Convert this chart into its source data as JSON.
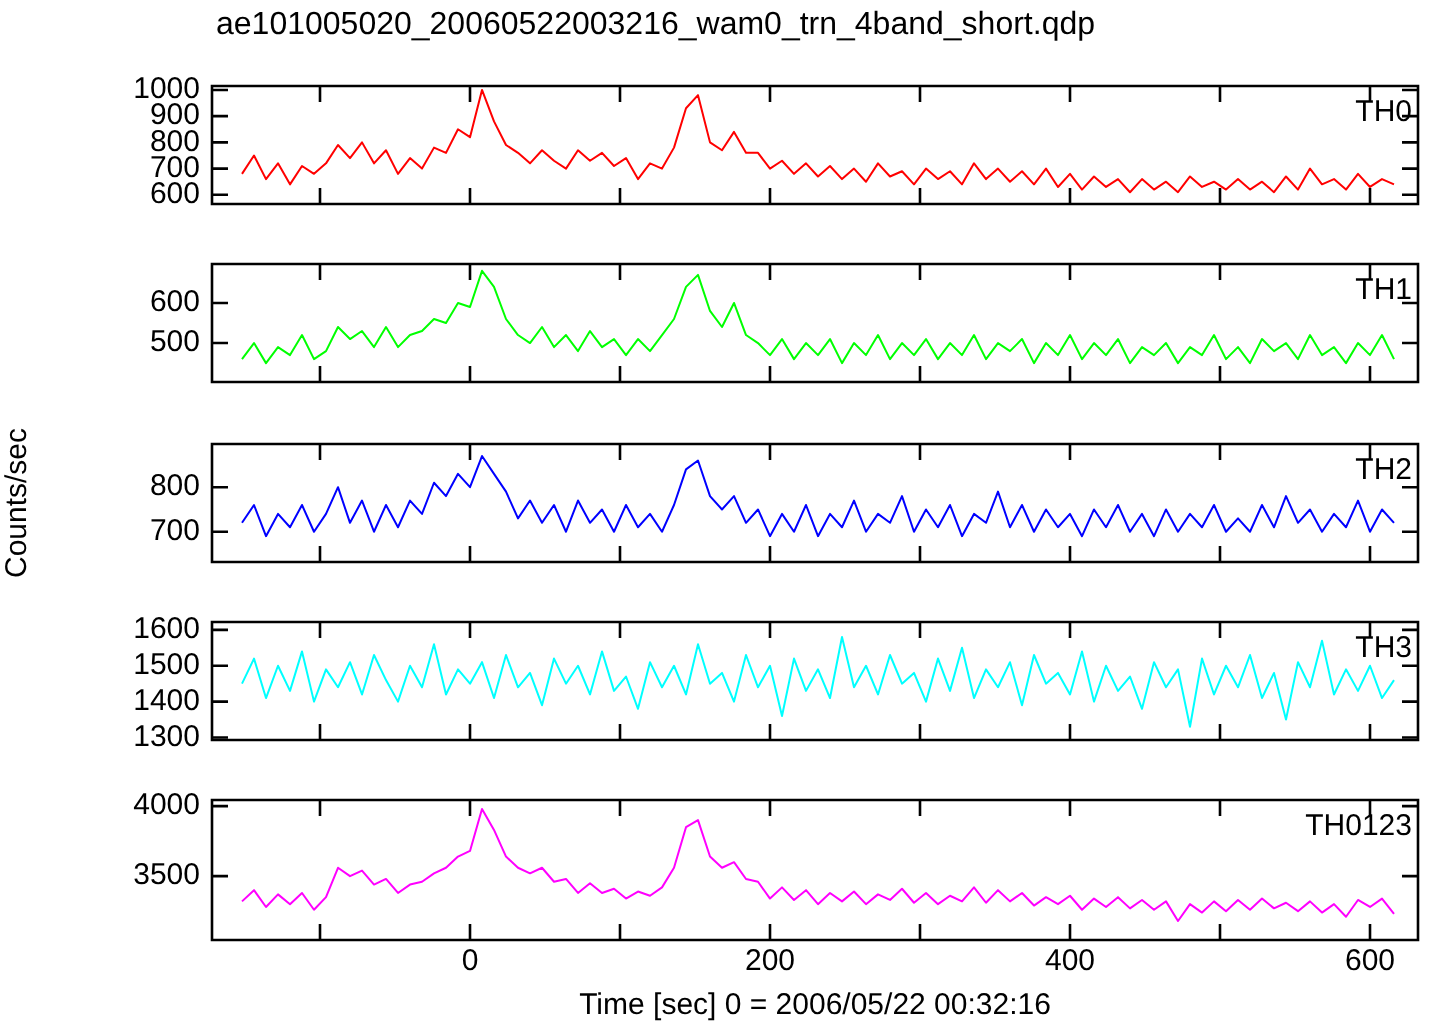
{
  "chart_data": [
    {
      "type": "line",
      "title": "ae101005020_20060522003216_wam0_trn_4band_short.qdp",
      "tick_labels": "y",
      "marker": "none",
      "x": [
        -152,
        -144,
        -136,
        -128,
        -120,
        -112,
        -104,
        -96,
        -88,
        -80,
        -72,
        -64,
        -56,
        -48,
        -40,
        -32,
        -24,
        -16,
        -8,
        0,
        8,
        16,
        24,
        32,
        40,
        48,
        56,
        64,
        72,
        80,
        88,
        96,
        104,
        112,
        120,
        128,
        136,
        144,
        152,
        160,
        168,
        176,
        184,
        192,
        200,
        208,
        216,
        224,
        232,
        240,
        248,
        256,
        264,
        272,
        280,
        288,
        296,
        304,
        312,
        320,
        328,
        336,
        344,
        352,
        360,
        368,
        376,
        384,
        392,
        400,
        408,
        416,
        424,
        432,
        440,
        448,
        456,
        464,
        472,
        480,
        488,
        496,
        504,
        512,
        520,
        528,
        536,
        544,
        552,
        560,
        568,
        576,
        584,
        592,
        600,
        608,
        616
      ],
      "xlim": [
        -172,
        632
      ],
      "xticks": [
        {
          "value": -100,
          "label": null
        },
        {
          "value": 0,
          "label": null
        },
        {
          "value": 100,
          "label": null
        },
        {
          "value": 200,
          "label": null
        },
        {
          "value": 300,
          "label": null
        },
        {
          "value": 400,
          "label": null
        },
        {
          "value": 500,
          "label": null
        },
        {
          "value": 600,
          "label": null
        }
      ],
      "ylim": [
        565,
        1015
      ],
      "yticks": [
        600,
        700,
        800,
        900,
        1000
      ],
      "series": [
        {
          "name": "TH0",
          "color": "#ff0000",
          "values": [
            680,
            750,
            660,
            720,
            640,
            710,
            680,
            720,
            790,
            740,
            800,
            720,
            770,
            680,
            740,
            700,
            780,
            760,
            850,
            820,
            1000,
            880,
            790,
            760,
            720,
            770,
            730,
            700,
            770,
            730,
            760,
            710,
            740,
            660,
            720,
            700,
            780,
            930,
            980,
            800,
            770,
            840,
            760,
            760,
            700,
            730,
            680,
            720,
            670,
            710,
            660,
            700,
            650,
            720,
            670,
            690,
            640,
            700,
            660,
            690,
            640,
            720,
            660,
            700,
            650,
            690,
            640,
            700,
            630,
            680,
            620,
            670,
            630,
            660,
            610,
            660,
            620,
            650,
            610,
            670,
            630,
            650,
            620,
            660,
            620,
            650,
            610,
            670,
            620,
            700,
            640,
            660,
            620,
            680,
            630,
            660,
            640
          ]
        }
      ]
    },
    {
      "type": "line",
      "tick_labels": "y",
      "marker": "none",
      "x": [
        -152,
        -144,
        -136,
        -128,
        -120,
        -112,
        -104,
        -96,
        -88,
        -80,
        -72,
        -64,
        -56,
        -48,
        -40,
        -32,
        -24,
        -16,
        -8,
        0,
        8,
        16,
        24,
        32,
        40,
        48,
        56,
        64,
        72,
        80,
        88,
        96,
        104,
        112,
        120,
        128,
        136,
        144,
        152,
        160,
        168,
        176,
        184,
        192,
        200,
        208,
        216,
        224,
        232,
        240,
        248,
        256,
        264,
        272,
        280,
        288,
        296,
        304,
        312,
        320,
        328,
        336,
        344,
        352,
        360,
        368,
        376,
        384,
        392,
        400,
        408,
        416,
        424,
        432,
        440,
        448,
        456,
        464,
        472,
        480,
        488,
        496,
        504,
        512,
        520,
        528,
        536,
        544,
        552,
        560,
        568,
        576,
        584,
        592,
        600,
        608,
        616
      ],
      "xlim": [
        -172,
        632
      ],
      "xticks": [
        {
          "value": -100,
          "label": null
        },
        {
          "value": 0,
          "label": null
        },
        {
          "value": 100,
          "label": null
        },
        {
          "value": 200,
          "label": null
        },
        {
          "value": 300,
          "label": null
        },
        {
          "value": 400,
          "label": null
        },
        {
          "value": 500,
          "label": null
        },
        {
          "value": 600,
          "label": null
        }
      ],
      "ylim": [
        403,
        697
      ],
      "yticks": [
        500,
        600
      ],
      "series": [
        {
          "name": "TH1",
          "color": "#00ff00",
          "values": [
            460,
            500,
            450,
            490,
            470,
            520,
            460,
            480,
            540,
            510,
            530,
            490,
            540,
            490,
            520,
            530,
            560,
            550,
            600,
            590,
            680,
            640,
            560,
            520,
            500,
            540,
            490,
            520,
            480,
            530,
            490,
            510,
            470,
            510,
            480,
            520,
            560,
            640,
            670,
            580,
            540,
            600,
            520,
            500,
            470,
            510,
            460,
            500,
            470,
            510,
            450,
            500,
            470,
            520,
            460,
            500,
            470,
            510,
            460,
            500,
            470,
            520,
            460,
            500,
            480,
            510,
            450,
            500,
            470,
            520,
            460,
            500,
            470,
            510,
            450,
            490,
            470,
            500,
            450,
            490,
            470,
            520,
            460,
            490,
            450,
            510,
            480,
            500,
            460,
            520,
            470,
            490,
            450,
            500,
            470,
            520,
            460
          ]
        }
      ]
    },
    {
      "type": "line",
      "tick_labels": "y",
      "marker": "none",
      "ylabel": "Counts/sec",
      "x": [
        -152,
        -144,
        -136,
        -128,
        -120,
        -112,
        -104,
        -96,
        -88,
        -80,
        -72,
        -64,
        -56,
        -48,
        -40,
        -32,
        -24,
        -16,
        -8,
        0,
        8,
        16,
        24,
        32,
        40,
        48,
        56,
        64,
        72,
        80,
        88,
        96,
        104,
        112,
        120,
        128,
        136,
        144,
        152,
        160,
        168,
        176,
        184,
        192,
        200,
        208,
        216,
        224,
        232,
        240,
        248,
        256,
        264,
        272,
        280,
        288,
        296,
        304,
        312,
        320,
        328,
        336,
        344,
        352,
        360,
        368,
        376,
        384,
        392,
        400,
        408,
        416,
        424,
        432,
        440,
        448,
        456,
        464,
        472,
        480,
        488,
        496,
        504,
        512,
        520,
        528,
        536,
        544,
        552,
        560,
        568,
        576,
        584,
        592,
        600,
        608,
        616
      ],
      "xlim": [
        -172,
        632
      ],
      "xticks": [
        {
          "value": -100,
          "label": null
        },
        {
          "value": 0,
          "label": null
        },
        {
          "value": 100,
          "label": null
        },
        {
          "value": 200,
          "label": null
        },
        {
          "value": 300,
          "label": null
        },
        {
          "value": 400,
          "label": null
        },
        {
          "value": 500,
          "label": null
        },
        {
          "value": 600,
          "label": null
        }
      ],
      "ylim": [
        632,
        897
      ],
      "yticks": [
        700,
        800
      ],
      "series": [
        {
          "name": "TH2",
          "color": "#0000ff",
          "values": [
            720,
            760,
            690,
            740,
            710,
            760,
            700,
            740,
            800,
            720,
            770,
            700,
            760,
            710,
            770,
            740,
            810,
            780,
            830,
            800,
            870,
            830,
            790,
            730,
            770,
            720,
            760,
            700,
            770,
            720,
            750,
            700,
            760,
            710,
            740,
            700,
            760,
            840,
            860,
            780,
            750,
            780,
            720,
            750,
            690,
            740,
            700,
            760,
            690,
            740,
            710,
            770,
            700,
            740,
            720,
            780,
            700,
            750,
            710,
            760,
            690,
            740,
            720,
            790,
            710,
            760,
            700,
            750,
            710,
            740,
            690,
            750,
            710,
            760,
            700,
            740,
            690,
            750,
            700,
            740,
            710,
            760,
            700,
            730,
            700,
            760,
            710,
            780,
            720,
            750,
            700,
            740,
            710,
            770,
            700,
            750,
            720
          ]
        }
      ]
    },
    {
      "type": "line",
      "tick_labels": "y",
      "marker": "none",
      "x": [
        -152,
        -144,
        -136,
        -128,
        -120,
        -112,
        -104,
        -96,
        -88,
        -80,
        -72,
        -64,
        -56,
        -48,
        -40,
        -32,
        -24,
        -16,
        -8,
        0,
        8,
        16,
        24,
        32,
        40,
        48,
        56,
        64,
        72,
        80,
        88,
        96,
        104,
        112,
        120,
        128,
        136,
        144,
        152,
        160,
        168,
        176,
        184,
        192,
        200,
        208,
        216,
        224,
        232,
        240,
        248,
        256,
        264,
        272,
        280,
        288,
        296,
        304,
        312,
        320,
        328,
        336,
        344,
        352,
        360,
        368,
        376,
        384,
        392,
        400,
        408,
        416,
        424,
        432,
        440,
        448,
        456,
        464,
        472,
        480,
        488,
        496,
        504,
        512,
        520,
        528,
        536,
        544,
        552,
        560,
        568,
        576,
        584,
        592,
        600,
        608,
        616
      ],
      "xlim": [
        -172,
        632
      ],
      "xticks": [
        {
          "value": -100,
          "label": null
        },
        {
          "value": 0,
          "label": null
        },
        {
          "value": 100,
          "label": null
        },
        {
          "value": 200,
          "label": null
        },
        {
          "value": 300,
          "label": null
        },
        {
          "value": 400,
          "label": null
        },
        {
          "value": 500,
          "label": null
        },
        {
          "value": 600,
          "label": null
        }
      ],
      "ylim": [
        1293,
        1622
      ],
      "yticks": [
        1300,
        1400,
        1500,
        1600
      ],
      "series": [
        {
          "name": "TH3",
          "color": "#00ffff",
          "values": [
            1450,
            1520,
            1410,
            1500,
            1430,
            1540,
            1400,
            1490,
            1440,
            1510,
            1420,
            1530,
            1460,
            1400,
            1500,
            1440,
            1560,
            1420,
            1490,
            1450,
            1510,
            1410,
            1530,
            1440,
            1480,
            1390,
            1520,
            1450,
            1500,
            1420,
            1540,
            1430,
            1470,
            1380,
            1510,
            1440,
            1500,
            1420,
            1560,
            1450,
            1480,
            1400,
            1530,
            1440,
            1500,
            1360,
            1520,
            1430,
            1490,
            1410,
            1580,
            1440,
            1500,
            1420,
            1530,
            1450,
            1480,
            1400,
            1520,
            1430,
            1550,
            1410,
            1490,
            1440,
            1510,
            1390,
            1530,
            1450,
            1480,
            1420,
            1540,
            1400,
            1500,
            1430,
            1470,
            1380,
            1510,
            1440,
            1490,
            1330,
            1520,
            1420,
            1500,
            1440,
            1530,
            1410,
            1480,
            1350,
            1510,
            1440,
            1570,
            1420,
            1490,
            1430,
            1500,
            1410,
            1460
          ]
        }
      ]
    },
    {
      "type": "line",
      "marker": "none",
      "xlabel": "Time [sec] 0 = 2006/05/22 00:32:16",
      "x": [
        -152,
        -144,
        -136,
        -128,
        -120,
        -112,
        -104,
        -96,
        -88,
        -80,
        -72,
        -64,
        -56,
        -48,
        -40,
        -32,
        -24,
        -16,
        -8,
        0,
        8,
        16,
        24,
        32,
        40,
        48,
        56,
        64,
        72,
        80,
        88,
        96,
        104,
        112,
        120,
        128,
        136,
        144,
        152,
        160,
        168,
        176,
        184,
        192,
        200,
        208,
        216,
        224,
        232,
        240,
        248,
        256,
        264,
        272,
        280,
        288,
        296,
        304,
        312,
        320,
        328,
        336,
        344,
        352,
        360,
        368,
        376,
        384,
        392,
        400,
        408,
        416,
        424,
        432,
        440,
        448,
        456,
        464,
        472,
        480,
        488,
        496,
        504,
        512,
        520,
        528,
        536,
        544,
        552,
        560,
        568,
        576,
        584,
        592,
        600,
        608,
        616
      ],
      "xlim": [
        -172,
        632
      ],
      "xticks": [
        {
          "value": -100,
          "label": null
        },
        0,
        {
          "value": 100,
          "label": null
        },
        200,
        {
          "value": 300,
          "label": null
        },
        400,
        {
          "value": 500,
          "label": null
        },
        600
      ],
      "ylim": [
        3044,
        4044
      ],
      "yticks": [
        3500,
        4000
      ],
      "series": [
        {
          "name": "TH0123",
          "color": "#ff00ff",
          "values": [
            3320,
            3400,
            3280,
            3370,
            3300,
            3380,
            3260,
            3350,
            3560,
            3500,
            3540,
            3440,
            3480,
            3380,
            3440,
            3460,
            3520,
            3560,
            3640,
            3680,
            3980,
            3830,
            3640,
            3560,
            3520,
            3560,
            3460,
            3480,
            3380,
            3450,
            3380,
            3410,
            3340,
            3390,
            3360,
            3420,
            3560,
            3850,
            3900,
            3640,
            3560,
            3600,
            3480,
            3460,
            3340,
            3420,
            3330,
            3400,
            3300,
            3380,
            3320,
            3390,
            3300,
            3370,
            3330,
            3410,
            3310,
            3380,
            3300,
            3360,
            3320,
            3420,
            3310,
            3400,
            3320,
            3380,
            3290,
            3350,
            3300,
            3360,
            3260,
            3340,
            3280,
            3350,
            3270,
            3330,
            3260,
            3320,
            3180,
            3300,
            3240,
            3320,
            3250,
            3330,
            3260,
            3340,
            3270,
            3310,
            3250,
            3320,
            3240,
            3300,
            3210,
            3330,
            3280,
            3340,
            3230
          ]
        }
      ]
    }
  ]
}
